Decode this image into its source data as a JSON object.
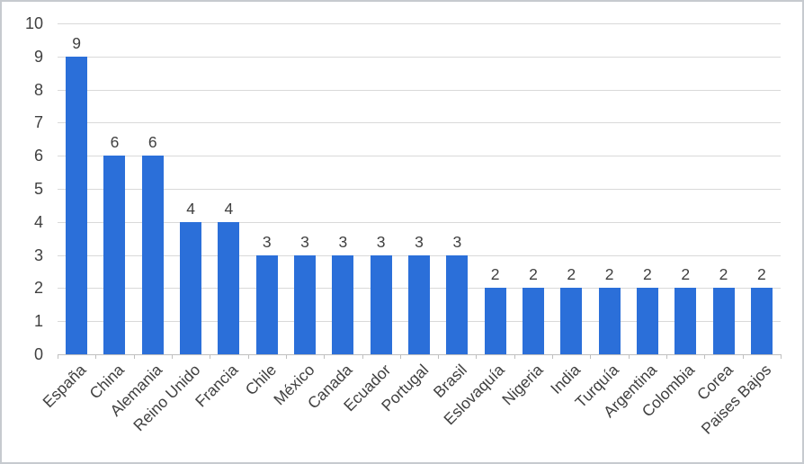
{
  "chart_data": {
    "type": "bar",
    "title": "",
    "xlabel": "",
    "ylabel": "",
    "categories": [
      "España",
      "China",
      "Alemania",
      "Reino Unido",
      "Francia",
      "Chile",
      "México",
      "Canada",
      "Ecuador",
      "Portugal",
      "Brasil",
      "Eslovaquía",
      "Nigeria",
      "India",
      "Turquía",
      "Argentina",
      "Colombia",
      "Corea",
      "Paises Bajos"
    ],
    "values": [
      9,
      6,
      6,
      4,
      4,
      3,
      3,
      3,
      3,
      3,
      3,
      2,
      2,
      2,
      2,
      2,
      2,
      2,
      2
    ],
    "data_labels": [
      9,
      6,
      6,
      4,
      4,
      3,
      3,
      3,
      3,
      3,
      3,
      2,
      2,
      2,
      2,
      2,
      2,
      2,
      2
    ],
    "ylim": [
      0,
      10
    ],
    "y_tick_step": 1,
    "y_tick_labels": [
      "0",
      "1",
      "2",
      "3",
      "4",
      "5",
      "6",
      "7",
      "8",
      "9",
      "10"
    ],
    "grid": true,
    "legend_position": "none",
    "x_label_rotation_deg": 45,
    "colors": {
      "bar": "#2b6fd9",
      "text": "#404040",
      "gridline": "#d9d9d9",
      "axis_line": "#bfbfbf",
      "background": "#ffffff",
      "frame_border": "#c6cacf"
    }
  }
}
